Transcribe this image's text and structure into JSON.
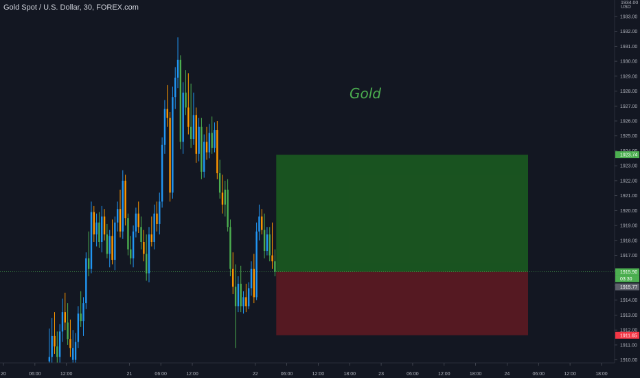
{
  "header": {
    "symbol_title": "Gold Spot / U.S. Dollar, 30, FOREX.com",
    "currency": "USD"
  },
  "annotation": {
    "text": "Gold",
    "color": "#4caf50"
  },
  "colors": {
    "background": "#131722",
    "candle_up": "#4caf50",
    "candle_down": "#ff9800",
    "candle_blue": "#2196f3",
    "profit_zone": "#1b5e20",
    "loss_zone": "#5d1a22",
    "axis_text": "#b2b5be",
    "target_tag": "#4caf50",
    "stop_tag": "#f23645",
    "current_tag": "#4caf50",
    "last_tag": "#5d606b"
  },
  "chart_data": {
    "type": "candlestick",
    "title": "Gold Spot / U.S. Dollar, 30, FOREX.com",
    "ylabel": "USD",
    "ylim": [
      1909.8,
      1934.1
    ],
    "y_ticks": [
      1910,
      1911,
      1912,
      1913,
      1914,
      1915,
      1916,
      1917,
      1918,
      1919,
      1920,
      1921,
      1922,
      1923,
      1924,
      1925,
      1926,
      1927,
      1928,
      1929,
      1930,
      1931,
      1932,
      1933
    ],
    "y_tick_labels": [
      "1910.00",
      "1911.00",
      "1912.00",
      "1913.00",
      "1914.00",
      "1915.00",
      "1916.00",
      "1917.00",
      "1918.00",
      "1919.00",
      "1920.00",
      "1921.00",
      "1922.00",
      "1923.00",
      "1924.00",
      "1925.00",
      "1926.00",
      "1927.00",
      "1928.00",
      "1929.00",
      "1930.00",
      "1931.00",
      "1932.00",
      "1933.00"
    ],
    "y_top_label": "1934.00",
    "x_ticks": [
      {
        "label": "20",
        "bar": 0
      },
      {
        "label": "06:00",
        "bar": 12
      },
      {
        "label": "12:00",
        "bar": 24
      },
      {
        "label": "21",
        "bar": 48
      },
      {
        "label": "06:00",
        "bar": 60
      },
      {
        "label": "12:00",
        "bar": 72
      },
      {
        "label": "22",
        "bar": 96
      },
      {
        "label": "06:00",
        "bar": 108
      },
      {
        "label": "12:00",
        "bar": 120
      },
      {
        "label": "18:00",
        "bar": 132
      },
      {
        "label": "23",
        "bar": 144
      },
      {
        "label": "06:00",
        "bar": 156
      },
      {
        "label": "12:00",
        "bar": 168
      },
      {
        "label": "18:00",
        "bar": 180
      },
      {
        "label": "24",
        "bar": 192
      },
      {
        "label": "06:00",
        "bar": 204
      },
      {
        "label": "12:00",
        "bar": 216
      },
      {
        "label": "18:00",
        "bar": 228
      }
    ],
    "candles": [
      {
        "bar": 17,
        "o": 1909.9,
        "h": 1912.1,
        "l": 1909.5,
        "c": 1910.2,
        "color": "blue"
      },
      {
        "bar": 18,
        "o": 1910.2,
        "h": 1912.8,
        "l": 1909.6,
        "c": 1911.6,
        "color": "blue"
      },
      {
        "bar": 19,
        "o": 1911.6,
        "h": 1913.2,
        "l": 1910.4,
        "c": 1910.9,
        "color": "orange"
      },
      {
        "bar": 20,
        "o": 1910.9,
        "h": 1911.9,
        "l": 1909.7,
        "c": 1910.2,
        "color": "green"
      },
      {
        "bar": 21,
        "o": 1910.2,
        "h": 1912.4,
        "l": 1909.5,
        "c": 1911.9,
        "color": "blue"
      },
      {
        "bar": 22,
        "o": 1911.9,
        "h": 1914.1,
        "l": 1911.2,
        "c": 1913.2,
        "color": "blue"
      },
      {
        "bar": 23,
        "o": 1913.2,
        "h": 1914.5,
        "l": 1912.0,
        "c": 1912.5,
        "color": "orange"
      },
      {
        "bar": 24,
        "o": 1912.5,
        "h": 1913.8,
        "l": 1911.0,
        "c": 1911.4,
        "color": "green"
      },
      {
        "bar": 25,
        "o": 1911.4,
        "h": 1912.7,
        "l": 1910.2,
        "c": 1910.8,
        "color": "orange"
      },
      {
        "bar": 26,
        "o": 1910.8,
        "h": 1912.0,
        "l": 1909.7,
        "c": 1910.0,
        "color": "blue"
      },
      {
        "bar": 27,
        "o": 1910.0,
        "h": 1911.8,
        "l": 1909.4,
        "c": 1911.2,
        "color": "blue"
      },
      {
        "bar": 28,
        "o": 1911.2,
        "h": 1913.6,
        "l": 1910.8,
        "c": 1913.1,
        "color": "blue"
      },
      {
        "bar": 29,
        "o": 1913.1,
        "h": 1914.6,
        "l": 1912.2,
        "c": 1912.6,
        "color": "green"
      },
      {
        "bar": 30,
        "o": 1912.6,
        "h": 1914.2,
        "l": 1911.6,
        "c": 1913.8,
        "color": "blue"
      },
      {
        "bar": 31,
        "o": 1913.8,
        "h": 1917.2,
        "l": 1913.4,
        "c": 1916.8,
        "color": "blue"
      },
      {
        "bar": 32,
        "o": 1916.8,
        "h": 1918.6,
        "l": 1915.6,
        "c": 1916.1,
        "color": "green"
      },
      {
        "bar": 33,
        "o": 1916.1,
        "h": 1920.6,
        "l": 1915.8,
        "c": 1919.9,
        "color": "blue"
      },
      {
        "bar": 34,
        "o": 1919.9,
        "h": 1920.3,
        "l": 1917.9,
        "c": 1918.4,
        "color": "orange"
      },
      {
        "bar": 35,
        "o": 1918.4,
        "h": 1919.8,
        "l": 1917.6,
        "c": 1919.2,
        "color": "blue"
      },
      {
        "bar": 36,
        "o": 1919.2,
        "h": 1919.9,
        "l": 1917.5,
        "c": 1917.9,
        "color": "green"
      },
      {
        "bar": 37,
        "o": 1917.9,
        "h": 1920.3,
        "l": 1917.2,
        "c": 1919.6,
        "color": "blue"
      },
      {
        "bar": 38,
        "o": 1919.6,
        "h": 1920.1,
        "l": 1918.0,
        "c": 1918.4,
        "color": "orange"
      },
      {
        "bar": 39,
        "o": 1918.4,
        "h": 1919.1,
        "l": 1916.8,
        "c": 1917.1,
        "color": "green"
      },
      {
        "bar": 40,
        "o": 1917.1,
        "h": 1918.7,
        "l": 1916.2,
        "c": 1918.3,
        "color": "blue"
      },
      {
        "bar": 41,
        "o": 1918.3,
        "h": 1919.4,
        "l": 1916.4,
        "c": 1916.7,
        "color": "orange"
      },
      {
        "bar": 42,
        "o": 1916.7,
        "h": 1919.6,
        "l": 1916.0,
        "c": 1919.2,
        "color": "blue"
      },
      {
        "bar": 43,
        "o": 1919.2,
        "h": 1920.6,
        "l": 1918.6,
        "c": 1920.1,
        "color": "blue"
      },
      {
        "bar": 44,
        "o": 1920.1,
        "h": 1921.4,
        "l": 1918.2,
        "c": 1918.6,
        "color": "orange"
      },
      {
        "bar": 45,
        "o": 1918.6,
        "h": 1922.7,
        "l": 1918.1,
        "c": 1922.0,
        "color": "blue"
      },
      {
        "bar": 46,
        "o": 1922.0,
        "h": 1922.4,
        "l": 1919.0,
        "c": 1919.5,
        "color": "orange"
      },
      {
        "bar": 47,
        "o": 1919.5,
        "h": 1919.8,
        "l": 1917.0,
        "c": 1917.4,
        "color": "green"
      },
      {
        "bar": 48,
        "o": 1917.4,
        "h": 1918.3,
        "l": 1916.4,
        "c": 1916.8,
        "color": "green"
      },
      {
        "bar": 49,
        "o": 1916.8,
        "h": 1919.0,
        "l": 1916.2,
        "c": 1918.6,
        "color": "blue"
      },
      {
        "bar": 50,
        "o": 1918.6,
        "h": 1920.2,
        "l": 1918.2,
        "c": 1919.8,
        "color": "blue"
      },
      {
        "bar": 51,
        "o": 1919.8,
        "h": 1920.6,
        "l": 1918.5,
        "c": 1918.9,
        "color": "orange"
      },
      {
        "bar": 52,
        "o": 1918.9,
        "h": 1919.6,
        "l": 1917.4,
        "c": 1917.9,
        "color": "green"
      },
      {
        "bar": 53,
        "o": 1917.9,
        "h": 1918.7,
        "l": 1916.6,
        "c": 1917.1,
        "color": "orange"
      },
      {
        "bar": 54,
        "o": 1917.1,
        "h": 1918.4,
        "l": 1915.3,
        "c": 1915.8,
        "color": "green"
      },
      {
        "bar": 55,
        "o": 1915.8,
        "h": 1918.9,
        "l": 1915.2,
        "c": 1918.4,
        "color": "blue"
      },
      {
        "bar": 56,
        "o": 1918.4,
        "h": 1919.6,
        "l": 1917.6,
        "c": 1917.9,
        "color": "orange"
      },
      {
        "bar": 57,
        "o": 1917.9,
        "h": 1920.4,
        "l": 1917.4,
        "c": 1919.8,
        "color": "blue"
      },
      {
        "bar": 58,
        "o": 1919.8,
        "h": 1920.6,
        "l": 1918.6,
        "c": 1919.1,
        "color": "orange"
      },
      {
        "bar": 59,
        "o": 1919.1,
        "h": 1921.2,
        "l": 1918.4,
        "c": 1920.6,
        "color": "blue"
      },
      {
        "bar": 60,
        "o": 1920.6,
        "h": 1924.9,
        "l": 1920.2,
        "c": 1924.4,
        "color": "blue"
      },
      {
        "bar": 61,
        "o": 1924.4,
        "h": 1927.4,
        "l": 1923.8,
        "c": 1926.8,
        "color": "blue"
      },
      {
        "bar": 62,
        "o": 1926.8,
        "h": 1928.4,
        "l": 1925.6,
        "c": 1926.2,
        "color": "orange"
      },
      {
        "bar": 63,
        "o": 1926.2,
        "h": 1926.6,
        "l": 1920.6,
        "c": 1921.2,
        "color": "orange"
      },
      {
        "bar": 64,
        "o": 1921.2,
        "h": 1928.3,
        "l": 1920.8,
        "c": 1927.6,
        "color": "blue"
      },
      {
        "bar": 65,
        "o": 1927.6,
        "h": 1929.6,
        "l": 1926.8,
        "c": 1928.9,
        "color": "blue"
      },
      {
        "bar": 66,
        "o": 1928.9,
        "h": 1931.6,
        "l": 1928.2,
        "c": 1930.1,
        "color": "blue"
      },
      {
        "bar": 67,
        "o": 1930.1,
        "h": 1930.4,
        "l": 1924.1,
        "c": 1924.6,
        "color": "green"
      },
      {
        "bar": 68,
        "o": 1924.6,
        "h": 1928.6,
        "l": 1923.8,
        "c": 1927.9,
        "color": "blue"
      },
      {
        "bar": 69,
        "o": 1927.9,
        "h": 1929.4,
        "l": 1926.4,
        "c": 1926.9,
        "color": "green"
      },
      {
        "bar": 70,
        "o": 1926.9,
        "h": 1929.2,
        "l": 1925.1,
        "c": 1925.6,
        "color": "orange"
      },
      {
        "bar": 71,
        "o": 1925.6,
        "h": 1928.5,
        "l": 1924.2,
        "c": 1924.8,
        "color": "green"
      },
      {
        "bar": 72,
        "o": 1924.8,
        "h": 1927.9,
        "l": 1924.4,
        "c": 1926.4,
        "color": "blue"
      },
      {
        "bar": 73,
        "o": 1926.4,
        "h": 1926.9,
        "l": 1923.2,
        "c": 1923.8,
        "color": "orange"
      },
      {
        "bar": 74,
        "o": 1923.8,
        "h": 1926.2,
        "l": 1923.3,
        "c": 1925.6,
        "color": "blue"
      },
      {
        "bar": 75,
        "o": 1925.6,
        "h": 1926.2,
        "l": 1922.1,
        "c": 1922.6,
        "color": "green"
      },
      {
        "bar": 76,
        "o": 1922.6,
        "h": 1925.1,
        "l": 1922.2,
        "c": 1924.6,
        "color": "blue"
      },
      {
        "bar": 77,
        "o": 1924.6,
        "h": 1925.6,
        "l": 1923.4,
        "c": 1923.9,
        "color": "orange"
      },
      {
        "bar": 78,
        "o": 1923.9,
        "h": 1925.8,
        "l": 1923.5,
        "c": 1925.2,
        "color": "blue"
      },
      {
        "bar": 79,
        "o": 1925.2,
        "h": 1926.3,
        "l": 1923.8,
        "c": 1924.2,
        "color": "green"
      },
      {
        "bar": 80,
        "o": 1924.2,
        "h": 1925.9,
        "l": 1923.9,
        "c": 1925.4,
        "color": "blue"
      },
      {
        "bar": 81,
        "o": 1925.4,
        "h": 1926.0,
        "l": 1922.1,
        "c": 1922.5,
        "color": "orange"
      },
      {
        "bar": 82,
        "o": 1922.5,
        "h": 1923.4,
        "l": 1920.8,
        "c": 1921.2,
        "color": "green"
      },
      {
        "bar": 83,
        "o": 1921.2,
        "h": 1922.4,
        "l": 1919.8,
        "c": 1920.4,
        "color": "orange"
      },
      {
        "bar": 84,
        "o": 1920.4,
        "h": 1922.0,
        "l": 1919.6,
        "c": 1921.4,
        "color": "green"
      },
      {
        "bar": 85,
        "o": 1921.4,
        "h": 1922.1,
        "l": 1918.6,
        "c": 1918.9,
        "color": "green"
      },
      {
        "bar": 86,
        "o": 1918.9,
        "h": 1919.4,
        "l": 1915.6,
        "c": 1916.1,
        "color": "green"
      },
      {
        "bar": 87,
        "o": 1916.1,
        "h": 1917.2,
        "l": 1914.4,
        "c": 1914.9,
        "color": "orange"
      },
      {
        "bar": 88,
        "o": 1914.9,
        "h": 1916.4,
        "l": 1910.8,
        "c": 1913.6,
        "color": "green"
      },
      {
        "bar": 89,
        "o": 1913.6,
        "h": 1915.6,
        "l": 1913.2,
        "c": 1915.1,
        "color": "blue"
      },
      {
        "bar": 90,
        "o": 1915.1,
        "h": 1916.3,
        "l": 1913.2,
        "c": 1913.6,
        "color": "green"
      },
      {
        "bar": 91,
        "o": 1913.6,
        "h": 1914.6,
        "l": 1913.1,
        "c": 1914.2,
        "color": "blue"
      },
      {
        "bar": 92,
        "o": 1914.2,
        "h": 1915.1,
        "l": 1913.2,
        "c": 1913.6,
        "color": "orange"
      },
      {
        "bar": 93,
        "o": 1913.6,
        "h": 1915.2,
        "l": 1913.4,
        "c": 1914.8,
        "color": "blue"
      },
      {
        "bar": 94,
        "o": 1914.8,
        "h": 1916.6,
        "l": 1914.3,
        "c": 1916.1,
        "color": "blue"
      },
      {
        "bar": 95,
        "o": 1916.1,
        "h": 1917.1,
        "l": 1913.8,
        "c": 1914.2,
        "color": "orange"
      },
      {
        "bar": 96,
        "o": 1914.2,
        "h": 1919.2,
        "l": 1914.0,
        "c": 1918.6,
        "color": "blue"
      },
      {
        "bar": 97,
        "o": 1918.6,
        "h": 1920.4,
        "l": 1918.0,
        "c": 1919.6,
        "color": "blue"
      },
      {
        "bar": 98,
        "o": 1919.6,
        "h": 1920.1,
        "l": 1918.4,
        "c": 1918.7,
        "color": "orange"
      },
      {
        "bar": 99,
        "o": 1918.7,
        "h": 1919.8,
        "l": 1916.8,
        "c": 1917.3,
        "color": "green"
      },
      {
        "bar": 100,
        "o": 1917.3,
        "h": 1918.9,
        "l": 1917.0,
        "c": 1918.4,
        "color": "blue"
      },
      {
        "bar": 101,
        "o": 1918.4,
        "h": 1918.9,
        "l": 1916.6,
        "c": 1917.0,
        "color": "green"
      },
      {
        "bar": 102,
        "o": 1917.0,
        "h": 1919.2,
        "l": 1916.1,
        "c": 1916.6,
        "color": "orange"
      },
      {
        "bar": 103,
        "o": 1916.6,
        "h": 1917.4,
        "l": 1915.6,
        "c": 1915.9,
        "color": "green"
      }
    ],
    "current_price": 1915.9,
    "position": {
      "target_price": 1923.74,
      "entry_price": 1915.9,
      "stop_price": 1911.65,
      "start_bar": 104,
      "end_bar": 200
    },
    "price_tags": [
      {
        "label": "1923.74",
        "price": 1923.74,
        "kind": "target"
      },
      {
        "label": "1915.90",
        "price": 1915.9,
        "kind": "current"
      },
      {
        "label": "03:30",
        "price": 1915.33,
        "kind": "countdown"
      },
      {
        "label": "1915.77",
        "price": 1915.77,
        "kind": "last"
      },
      {
        "label": "1911.65",
        "price": 1911.65,
        "kind": "stop"
      }
    ]
  }
}
